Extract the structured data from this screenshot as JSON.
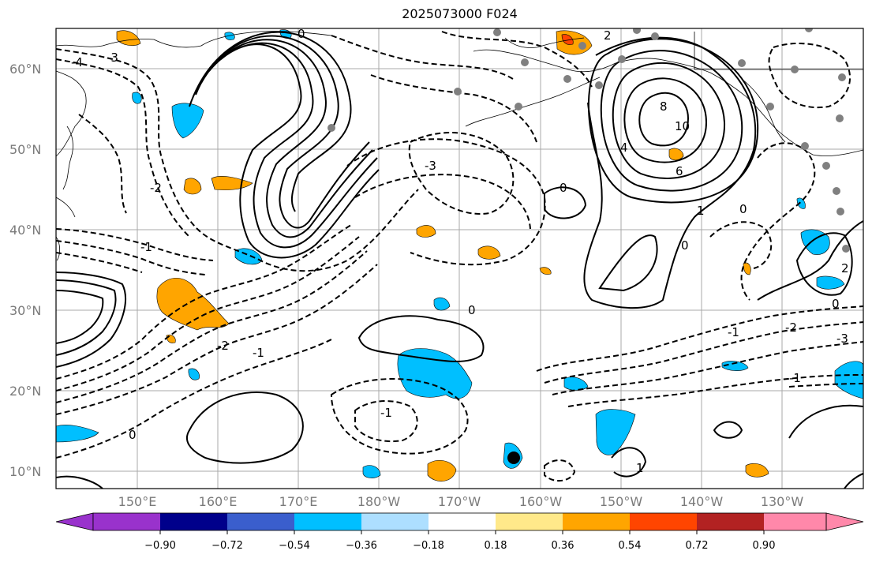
{
  "title": "2025073000 F024",
  "map": {
    "lat_labels": [
      "60°N",
      "50°N",
      "40°N",
      "30°N",
      "20°N",
      "10°N"
    ],
    "lon_labels": [
      "150°E",
      "160°E",
      "170°E",
      "180°W",
      "170°W",
      "160°W",
      "150°W",
      "140°W",
      "130°W"
    ],
    "contour_labels": [
      "0",
      "-2",
      "-3",
      "-4",
      "2",
      "8",
      "10",
      "6",
      "4",
      "1",
      "0",
      "-1",
      "-2",
      "-3",
      "-1",
      "0",
      "-1",
      "0",
      "-2",
      "-3",
      "2",
      "0",
      "-1",
      "-1",
      "0",
      "0",
      "1"
    ],
    "colors": {
      "contour": "#000000",
      "grid": "#a9a9a9",
      "coast": "#000000",
      "station": "#808080",
      "marker": "#000000"
    }
  },
  "colorbar": {
    "ticks": [
      "−0.90",
      "−0.72",
      "−0.54",
      "−0.36",
      "−0.18",
      "0.18",
      "0.36",
      "0.54",
      "0.72",
      "0.90"
    ],
    "colors": [
      "#9932CC",
      "#00008B",
      "#3A5ECD",
      "#00BFFF",
      "#ADDFFF",
      "#FFFFFF",
      "#FFE98A",
      "#FFA500",
      "#FF4500",
      "#B22222",
      "#FF88AA"
    ]
  }
}
